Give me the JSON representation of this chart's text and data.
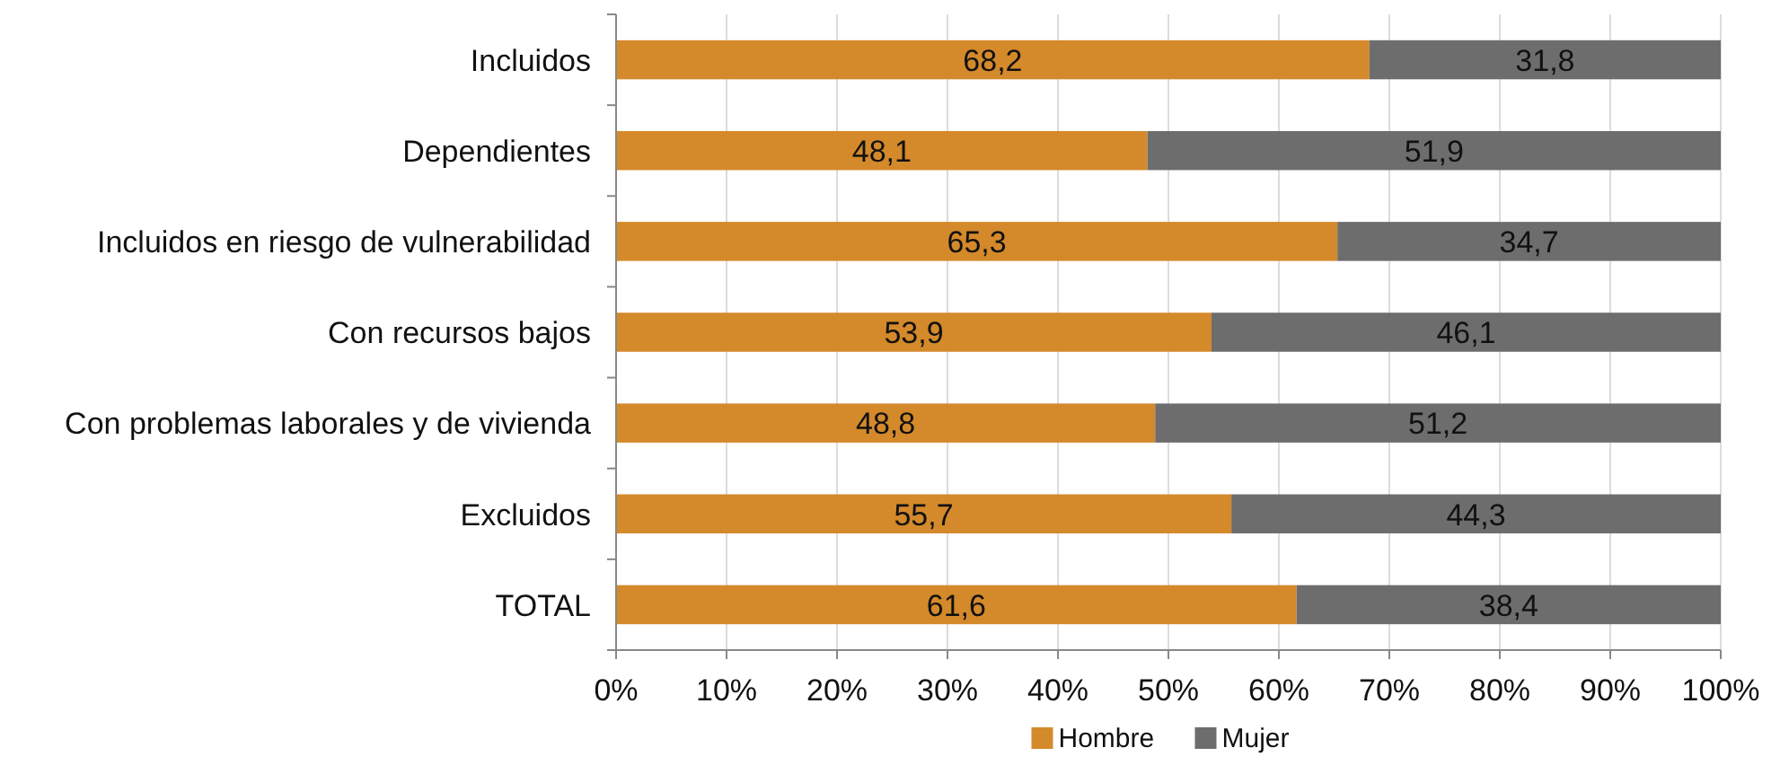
{
  "chart_data": {
    "type": "bar",
    "orientation": "horizontal",
    "stacked": true,
    "categories": [
      "Incluidos",
      "Dependientes",
      "Incluidos en riesgo de vulnerabilidad",
      "Con recursos bajos",
      "Con problemas laborales y de vivienda",
      "Excluidos",
      "TOTAL"
    ],
    "series": [
      {
        "name": "Hombre",
        "color": "#d4892b",
        "values": [
          68.2,
          48.1,
          65.3,
          53.9,
          48.8,
          55.7,
          61.6
        ],
        "value_labels": [
          "68,2",
          "48,1",
          "65,3",
          "53,9",
          "48,8",
          "55,7",
          "61,6"
        ]
      },
      {
        "name": "Mujer",
        "color": "#6d6d6e",
        "values": [
          31.8,
          51.9,
          34.7,
          46.1,
          51.2,
          44.3,
          38.4
        ],
        "value_labels": [
          "31,8",
          "51,9",
          "34,7",
          "46,1",
          "51,2",
          "44,3",
          "38,4"
        ]
      }
    ],
    "xlim": [
      0,
      100
    ],
    "xticks": [
      {
        "value": 0,
        "label": "0%"
      },
      {
        "value": 10,
        "label": "10%"
      },
      {
        "value": 20,
        "label": "20%"
      },
      {
        "value": 30,
        "label": "30%"
      },
      {
        "value": 40,
        "label": "40%"
      },
      {
        "value": 50,
        "label": "50%"
      },
      {
        "value": 60,
        "label": "60%"
      },
      {
        "value": 70,
        "label": "70%"
      },
      {
        "value": 80,
        "label": "80%"
      },
      {
        "value": 90,
        "label": "90%"
      },
      {
        "value": 100,
        "label": "100%"
      }
    ],
    "grid": "x",
    "legend": "bottom"
  }
}
